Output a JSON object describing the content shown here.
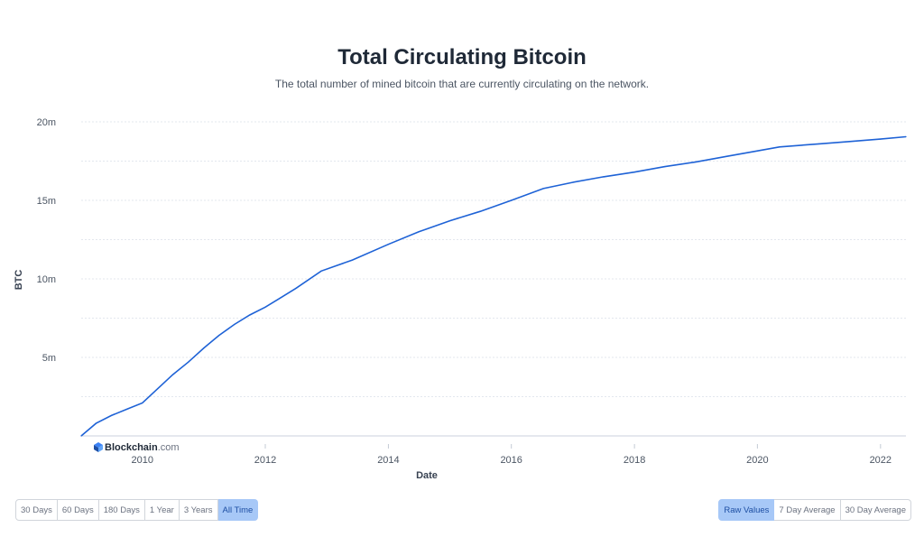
{
  "title": "Total Circulating Bitcoin",
  "subtitle": "The total number of mined bitcoin that are currently circulating on the network.",
  "brand": {
    "name": "Blockchain",
    "suffix": ".com"
  },
  "time_ranges": [
    {
      "label": "30 Days",
      "active": false
    },
    {
      "label": "60 Days",
      "active": false
    },
    {
      "label": "180 Days",
      "active": false
    },
    {
      "label": "1 Year",
      "active": false
    },
    {
      "label": "3 Years",
      "active": false
    },
    {
      "label": "All Time",
      "active": true
    }
  ],
  "value_modes": [
    {
      "label": "Raw Values",
      "active": true
    },
    {
      "label": "7 Day Average",
      "active": false
    },
    {
      "label": "30 Day Average",
      "active": false
    }
  ],
  "chart_data": {
    "type": "line",
    "title": "Total Circulating Bitcoin",
    "xlabel": "Date",
    "ylabel": "BTC",
    "xlim": [
      "2009-01-03",
      "2022-06-01"
    ],
    "ylim": [
      0,
      20000000
    ],
    "y_ticks": [
      {
        "value": 5000000,
        "label": "5m"
      },
      {
        "value": 10000000,
        "label": "10m"
      },
      {
        "value": 15000000,
        "label": "15m"
      },
      {
        "value": 20000000,
        "label": "20m"
      }
    ],
    "x_ticks": [
      "2010",
      "2012",
      "2014",
      "2016",
      "2018",
      "2020",
      "2022"
    ],
    "grid": true,
    "line_color": "#1e62d6",
    "series": [
      {
        "x": [
          "2009-01-03",
          "2009-04-01",
          "2009-07-01",
          "2009-10-01",
          "2010-01-01",
          "2010-04-01",
          "2010-07-01",
          "2010-10-01",
          "2011-01-01",
          "2011-04-01",
          "2011-07-01",
          "2011-10-01",
          "2012-01-01",
          "2012-04-01",
          "2012-07-01",
          "2012-11-28",
          "2013-06-01",
          "2014-01-01",
          "2014-07-01",
          "2015-01-01",
          "2015-07-01",
          "2016-01-01",
          "2016-07-09",
          "2017-01-01",
          "2017-07-01",
          "2018-01-01",
          "2018-07-01",
          "2019-01-01",
          "2019-07-01",
          "2020-01-01",
          "2020-05-11",
          "2021-01-01",
          "2021-07-01",
          "2022-01-01",
          "2022-06-01"
        ],
        "values": [
          50,
          800000,
          1300000,
          1700000,
          2100000,
          3000000,
          3900000,
          4700000,
          5600000,
          6400000,
          7100000,
          7700000,
          8200000,
          8800000,
          9400000,
          10500000,
          11200000,
          12200000,
          13000000,
          13700000,
          14300000,
          15000000,
          15750000,
          16150000,
          16500000,
          16800000,
          17150000,
          17450000,
          17800000,
          18150000,
          18400000,
          18600000,
          18750000,
          18900000,
          19050000
        ]
      }
    ]
  }
}
